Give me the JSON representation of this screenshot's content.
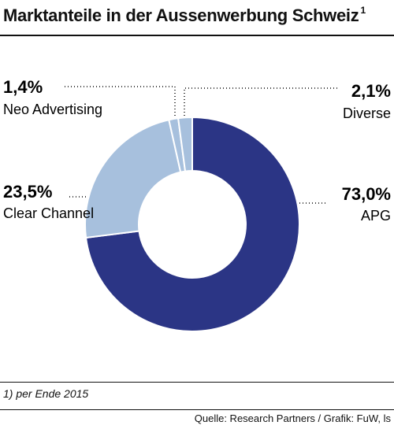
{
  "header": {
    "title": "Marktanteile in der Aussenwerbung Schweiz",
    "footnote_marker": "1"
  },
  "footer": {
    "footnote": "1) per Ende 2015",
    "source": "Quelle: Research Partners / Grafik: FuW, ls"
  },
  "colors": {
    "apg": "#2b3585",
    "clear_channel": "#a7c0dd",
    "neo_advertising": "#a7c0dd",
    "diverse": "#a7c0dd",
    "separator": "#ffffff",
    "leader": "#444444"
  },
  "chart_data": {
    "type": "pie",
    "variant": "donut",
    "title": "Marktanteile in der Aussenwerbung Schweiz",
    "slices": [
      {
        "label": "APG",
        "value": 73.0,
        "value_label": "73,0%"
      },
      {
        "label": "Clear Channel",
        "value": 23.5,
        "value_label": "23,5%"
      },
      {
        "label": "Neo Advertising",
        "value": 1.4,
        "value_label": "1,4%"
      },
      {
        "label": "Diverse",
        "value": 2.1,
        "value_label": "2,1%"
      }
    ],
    "start": "12 o'clock",
    "direction": "clockwise"
  }
}
